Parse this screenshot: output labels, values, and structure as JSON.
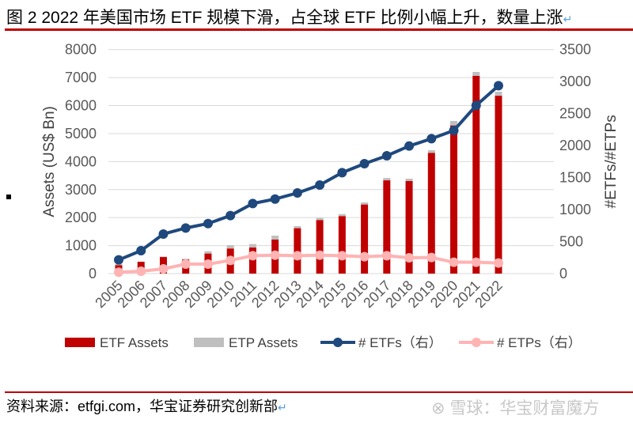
{
  "title": "图 2  2022 年美国市场 ETF 规模下滑，占全球 ETF 比例小幅上升，数量上涨",
  "source": "资料来源：etfgi.com，华宝证券研究创新部",
  "watermark": "雪球：华宝财富魔方",
  "chart_data": {
    "type": "bar+line",
    "categories": [
      "2005",
      "2006",
      "2007",
      "2008",
      "2009",
      "2010",
      "2011",
      "2012",
      "2013",
      "2014",
      "2015",
      "2016",
      "2017",
      "2018",
      "2019",
      "2020",
      "2021",
      "2022"
    ],
    "ylabel": "Assets (US$ Bn)",
    "y2label": "#ETFs/#ETPs",
    "ylim": [
      0,
      8000
    ],
    "y2lim": [
      0,
      3500
    ],
    "yticks": [
      "0",
      "1000",
      "2000",
      "3000",
      "4000",
      "5000",
      "6000",
      "7000",
      "8000"
    ],
    "y2ticks": [
      "0",
      "500",
      "1000",
      "1500",
      "2000",
      "2500",
      "3000",
      "3500"
    ],
    "grid": true,
    "legend_position": "bottom",
    "series": [
      {
        "name": "ETF Assets",
        "type": "bar",
        "axis": "left",
        "color": "#c00000",
        "values": [
          300,
          420,
          590,
          500,
          715,
          895,
          930,
          1215,
          1620,
          1910,
          2050,
          2465,
          3330,
          3305,
          4310,
          5290,
          7060,
          6350
        ]
      },
      {
        "name": "ETP Assets",
        "type": "bar-stacked-total",
        "axis": "left",
        "color": "#bfbfbf",
        "values": [
          340,
          430,
          610,
          530,
          800,
          1015,
          1055,
          1355,
          1695,
          1985,
          2125,
          2540,
          3415,
          3390,
          4405,
          5450,
          7200,
          6495
        ]
      },
      {
        "name": "# ETFs（右）",
        "type": "line",
        "axis": "right",
        "color": "#1f497d",
        "values": [
          214,
          358,
          618,
          712,
          782,
          906,
          1095,
          1165,
          1260,
          1384,
          1577,
          1717,
          1841,
          1993,
          2108,
          2236,
          2627,
          2936
        ]
      },
      {
        "name": "# ETPs（右）",
        "type": "line",
        "axis": "right",
        "color": "#ffb3b3",
        "values": [
          21,
          37,
          74,
          148,
          148,
          206,
          280,
          288,
          280,
          288,
          280,
          264,
          280,
          247,
          251,
          177,
          177,
          165
        ]
      }
    ]
  }
}
